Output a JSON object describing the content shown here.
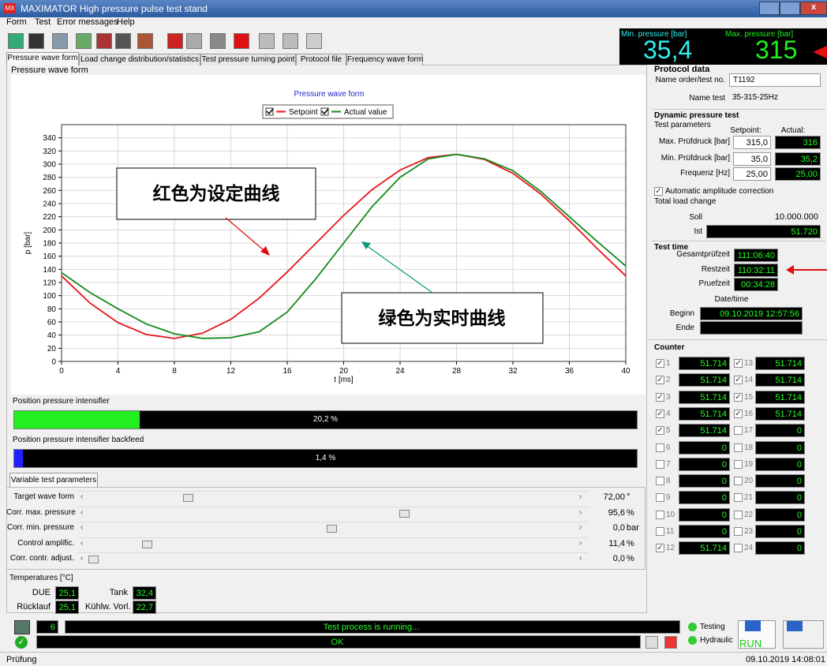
{
  "window": {
    "title": "MAXIMATOR High pressure pulse test stand"
  },
  "menu": [
    "Form",
    "Test",
    "Error messages",
    "Help"
  ],
  "display": {
    "min_label": "Min. pressure [bar]",
    "min_value": "35,4",
    "max_label": "Max. pressure [bar]",
    "max_value": "315"
  },
  "tabs": [
    "Pressure wave form",
    "Load change distribution/statistics",
    "Test pressure turning point",
    "Protocol file",
    "Frequency wave form"
  ],
  "group_title": "Pressure wave form",
  "chart_data": {
    "type": "line",
    "title": "Pressure wave form",
    "x_label": "t [ms]",
    "y_label": "p [bar]",
    "x": [
      0,
      2,
      4,
      6,
      8,
      10,
      12,
      14,
      16,
      18,
      20,
      22,
      24,
      26,
      28,
      30,
      32,
      34,
      36,
      38,
      40
    ],
    "series": [
      {
        "name": "Setpoint",
        "color": "#e8141a",
        "values": [
          130,
          89,
          59,
          41,
          35,
          43,
          64,
          96,
          136,
          179,
          222,
          261,
          291,
          310,
          315,
          307,
          286,
          254,
          214,
          171,
          130
        ]
      },
      {
        "name": "Actual value",
        "color": "#138a1c",
        "values": [
          135,
          105,
          80,
          57,
          42,
          35,
          36,
          45,
          75,
          125,
          180,
          235,
          280,
          308,
          315,
          308,
          290,
          258,
          220,
          182,
          145
        ]
      }
    ],
    "xlim": [
      0,
      40
    ],
    "xticks": [
      0,
      4,
      8,
      12,
      16,
      20,
      24,
      28,
      32,
      36,
      40
    ],
    "ylim": [
      0,
      360
    ],
    "yticks": [
      0,
      20,
      40,
      60,
      80,
      100,
      120,
      140,
      160,
      180,
      200,
      220,
      240,
      260,
      280,
      300,
      320,
      340
    ],
    "grid": true,
    "annotations": [
      "红色为设定曲线",
      "绿色为实时曲线"
    ]
  },
  "intensifier": {
    "title": "Position pressure intensifier",
    "value": 20.2,
    "label": "20,2 %",
    "color": "#22ee22"
  },
  "backfeed": {
    "title": "Position pressure intensifier backfeed",
    "value": 1.4,
    "label": "1,4 %",
    "color": "#2020ff"
  },
  "variable": {
    "tab": "Variable test parameters",
    "rows": [
      {
        "label": "Target wave form",
        "value": "72,00",
        "unit": "°"
      },
      {
        "label": "Corr. max. pressure",
        "value": "95,6",
        "unit": "%"
      },
      {
        "label": "Corr. min. pressure",
        "value": "0,0",
        "unit": "bar"
      },
      {
        "label": "Control amplific.",
        "value": "11,4",
        "unit": "%"
      },
      {
        "label": "Corr. contr. adjust.",
        "value": "0,0",
        "unit": "%"
      }
    ]
  },
  "temperatures": {
    "title": "Temperatures [°C]",
    "items": [
      {
        "label": "DUE",
        "value": "25,1"
      },
      {
        "label": "Tank",
        "value": "32,4"
      },
      {
        "label": "Rücklauf",
        "value": "25,1"
      },
      {
        "label": "Kühlw. Vorl.",
        "value": "22,7"
      }
    ]
  },
  "status": {
    "counter": "6",
    "message": "Test process is running...",
    "ok": "OK",
    "testing": "Testing",
    "hydraulic": "Hydraulic",
    "run": "RUN"
  },
  "statusbar": {
    "left": "Prüfung",
    "right": "09.10.2019 14:08:01"
  },
  "protocol": {
    "title": "Protocol data",
    "order_label": "Name order/test no.",
    "order": "T1192",
    "name_label": "Name test",
    "name": "35-315-25Hz",
    "dynamic": "Dynamic pressure test",
    "params": "Test parameters",
    "setpoint_head": "Setpoint:",
    "actual_head": "Actual:",
    "rows": [
      {
        "label": "Max. Prüfdruck [bar]",
        "setpoint": "315,0",
        "actual": "316"
      },
      {
        "label": "Min. Prüfdruck [bar]",
        "setpoint": "35,0",
        "actual": "35,2"
      },
      {
        "label": "Frequenz [Hz]",
        "setpoint": "25,00",
        "actual": "25,00"
      }
    ],
    "amplitude": "Automatic amplitude correction",
    "total": "Total load change",
    "soll_label": "Soll",
    "soll": "10.000.000",
    "ist_label": "Ist",
    "ist": "51.720",
    "test_time": "Test time",
    "times": [
      {
        "label": "Gesamtprüfzeit",
        "value": "111:06:40"
      },
      {
        "label": "Restzeit",
        "value": "110:32:11"
      },
      {
        "label": "Pruefzeit",
        "value": "00:34:28"
      }
    ],
    "datetime": "Date/time",
    "begin_label": "Beginn",
    "begin": "09.10.2019 12:57:56",
    "end_label": "Ende"
  },
  "counter": {
    "title": "Counter",
    "items": [
      {
        "label": "1",
        "value": "51.714",
        "checked": true
      },
      {
        "label": "2",
        "value": "51.714",
        "checked": true
      },
      {
        "label": "3",
        "value": "51.714",
        "checked": true
      },
      {
        "label": "4",
        "value": "51.714",
        "checked": true
      },
      {
        "label": "5",
        "value": "51.714",
        "checked": true
      },
      {
        "label": "6",
        "value": "0",
        "checked": false
      },
      {
        "label": "7",
        "value": "0",
        "checked": false
      },
      {
        "label": "8",
        "value": "0",
        "checked": false
      },
      {
        "label": "9",
        "value": "0",
        "checked": false
      },
      {
        "label": "10",
        "value": "0",
        "checked": false
      },
      {
        "label": "11",
        "value": "0",
        "checked": false
      },
      {
        "label": "12",
        "value": "51.714",
        "checked": true
      },
      {
        "label": "13",
        "value": "51.714",
        "checked": true
      },
      {
        "label": "14",
        "value": "51.714",
        "checked": true
      },
      {
        "label": "15",
        "value": "51.714",
        "checked": true
      },
      {
        "label": "16",
        "value": "51.714",
        "checked": true
      },
      {
        "label": "17",
        "value": "0",
        "checked": false
      },
      {
        "label": "18",
        "value": "0",
        "checked": false
      },
      {
        "label": "19",
        "value": "0",
        "checked": false
      },
      {
        "label": "20",
        "value": "0",
        "checked": false
      },
      {
        "label": "21",
        "value": "0",
        "checked": false
      },
      {
        "label": "22",
        "value": "0",
        "checked": false
      },
      {
        "label": "23",
        "value": "0",
        "checked": false
      },
      {
        "label": "24",
        "value": "0",
        "checked": false
      }
    ]
  }
}
